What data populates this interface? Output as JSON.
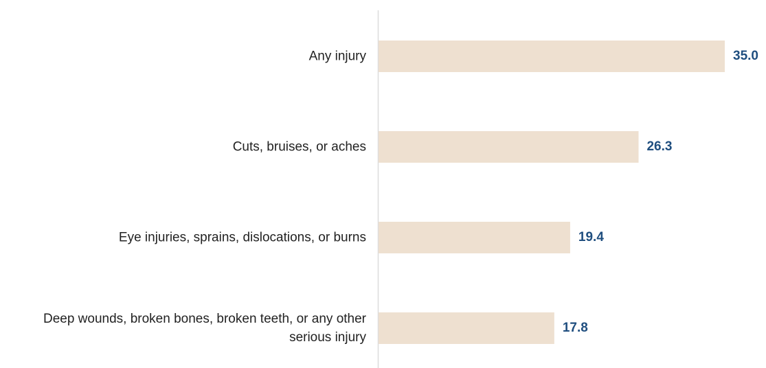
{
  "chart_data": {
    "type": "bar",
    "orientation": "horizontal",
    "categories": [
      "Any injury",
      "Cuts, bruises, or aches",
      "Eye injuries, sprains, dislocations, or burns",
      "Deep wounds, broken bones, broken teeth, or any other serious injury"
    ],
    "values": [
      35.0,
      26.3,
      19.4,
      17.8
    ],
    "value_labels": [
      "35.0",
      "26.3",
      "19.4",
      "17.8"
    ],
    "color": "#eee0d0",
    "label_color": "#1f4e7f"
  }
}
